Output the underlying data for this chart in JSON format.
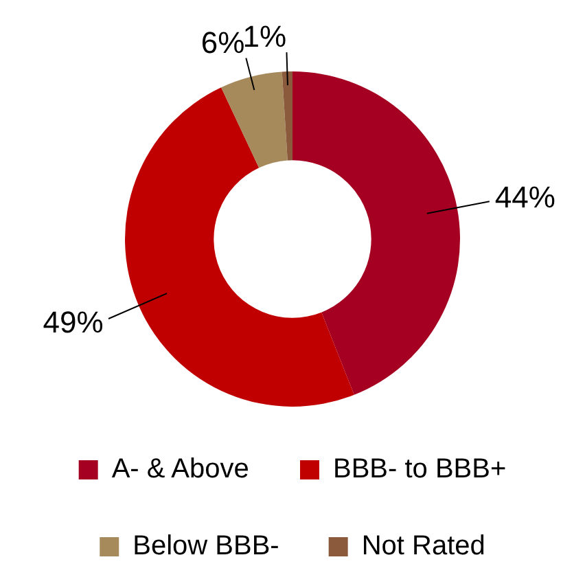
{
  "chart_data": {
    "type": "donut",
    "categories": [
      "A- & Above",
      "BBB- to BBB+",
      "Below BBB-",
      "Not Rated"
    ],
    "values": [
      44,
      49,
      6,
      1
    ],
    "value_labels": [
      "44%",
      "49%",
      "6%",
      "1%"
    ],
    "colors": [
      "#a50021",
      "#c00000",
      "#a68a5b",
      "#8b5a3c"
    ],
    "legend": "bottom"
  }
}
